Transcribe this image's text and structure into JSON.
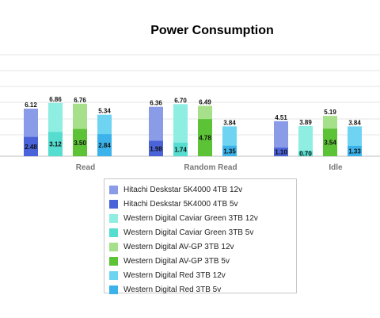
{
  "chart_data": {
    "type": "bar",
    "title": "Power Consumption",
    "categories": [
      "Read",
      "Random Read",
      "Idle"
    ],
    "layout_note": "stacked-overlay: each drive has a 12v bar (top value) and a 5v bar (bottom value)",
    "grid": true,
    "legend_position": "bottom-center",
    "series": [
      {
        "name": "Hitachi Deskstar 5K4000 4TB 12v",
        "color": "#8a9ce8",
        "values": [
          6.12,
          6.36,
          4.51
        ]
      },
      {
        "name": "Hitachi Deskstar 5K4000 4TB 5v",
        "color": "#4b63d8",
        "values": [
          2.48,
          1.98,
          1.1
        ]
      },
      {
        "name": "Western Digital Caviar Green 3TB 12v",
        "color": "#8eeee2",
        "values": [
          6.86,
          6.7,
          3.89
        ]
      },
      {
        "name": "Western Digital Caviar Green 3TB 5v",
        "color": "#55ddcf",
        "values": [
          3.12,
          1.74,
          0.7
        ]
      },
      {
        "name": "Western Digital AV-GP 3TB 12v",
        "color": "#a6e08a",
        "values": [
          6.76,
          6.49,
          5.19
        ]
      },
      {
        "name": "Western Digital AV-GP 3TB 5v",
        "color": "#5cc236",
        "values": [
          3.5,
          4.78,
          3.54
        ]
      },
      {
        "name": "Western Digital Red 3TB 12v",
        "color": "#6fd4f2",
        "values": [
          5.34,
          3.84,
          3.84
        ]
      },
      {
        "name": "Western Digital Red 3TB 5v",
        "color": "#3bb3ea",
        "values": [
          2.84,
          1.35,
          1.33
        ]
      }
    ]
  }
}
